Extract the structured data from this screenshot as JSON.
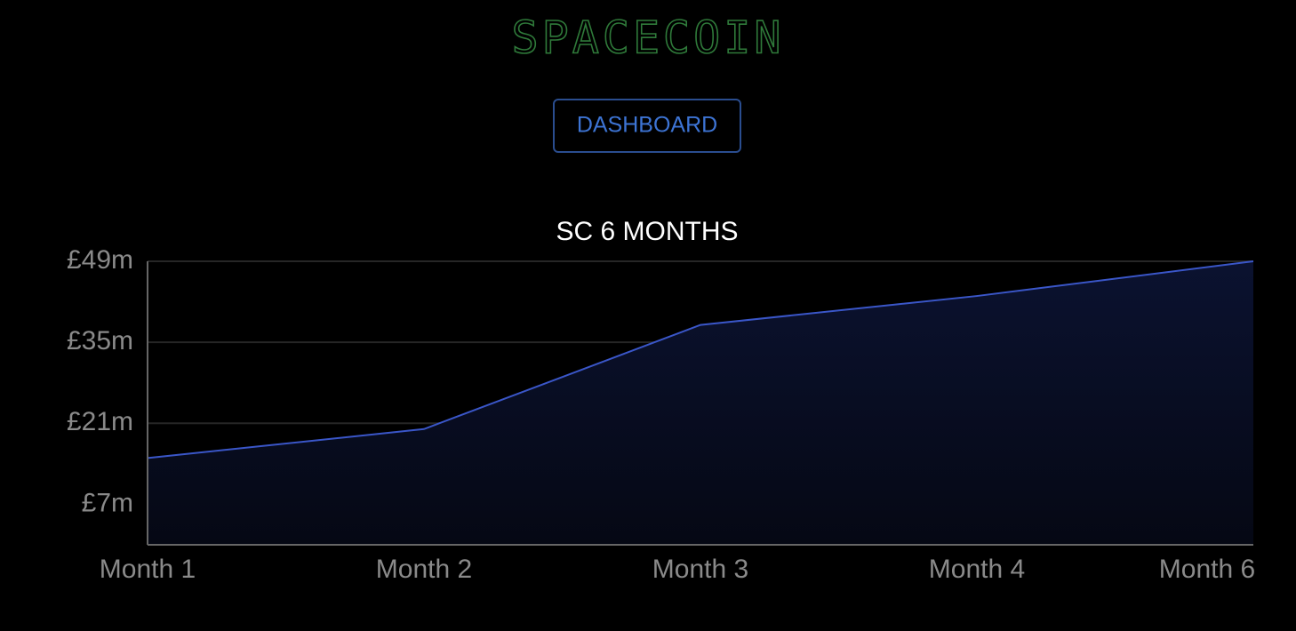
{
  "header": {
    "title": "SPACECOIN"
  },
  "nav": {
    "button": "DASHBOARD"
  },
  "chart_data": {
    "type": "area",
    "title": "SC 6 MONTHS",
    "categories": [
      "Month 1",
      "Month 2",
      "Month 3",
      "Month 4",
      "Month 6"
    ],
    "values": [
      15,
      20,
      38,
      43,
      49
    ],
    "color": "#3a56c8",
    "ylim": [
      0,
      49
    ],
    "yticks": [
      {
        "value": 7,
        "label": "£7m"
      },
      {
        "value": 21,
        "label": "£21m"
      },
      {
        "value": 35,
        "label": "£35m"
      },
      {
        "value": 49,
        "label": "£49m"
      }
    ],
    "grid": true
  }
}
